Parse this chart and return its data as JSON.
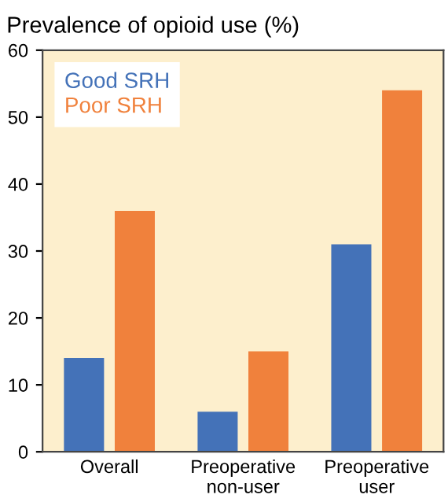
{
  "chart_data": {
    "type": "bar",
    "title": "Prevalence of opioid use (%)",
    "categories": [
      "Overall",
      "Preoperative\nnon-user",
      "Preoperative\nuser"
    ],
    "series": [
      {
        "name": "Good SRH",
        "color": "#4472b8",
        "values": [
          14,
          6,
          31
        ]
      },
      {
        "name": "Poor SRH",
        "color": "#f0813c",
        "values": [
          36,
          15,
          54
        ]
      }
    ],
    "ylim": [
      0,
      60
    ],
    "yticks": [
      0,
      10,
      20,
      30,
      40,
      50,
      60
    ],
    "grid": false,
    "legend": "top left"
  }
}
